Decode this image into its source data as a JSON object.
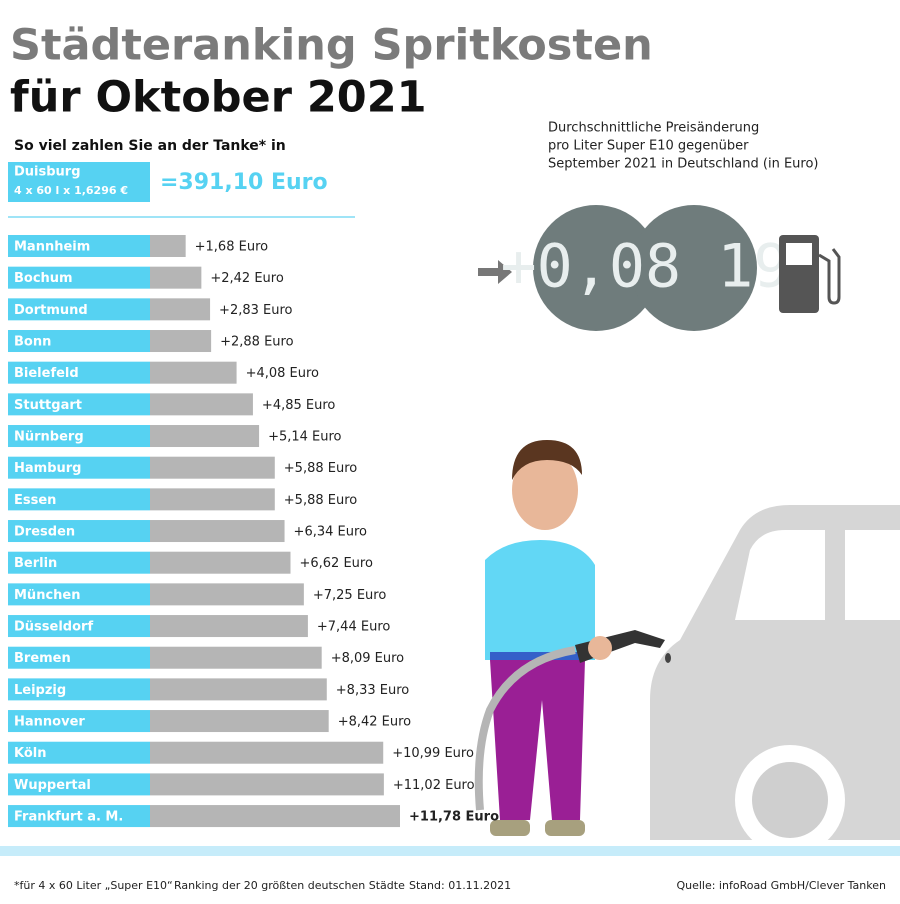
{
  "header": {
    "title_line1": "Städteranking Spritkosten",
    "title_line2": "für Oktober 2021",
    "subtitle": "So viel zahlen Sie an der Tanke* in",
    "reference_city": "Duisburg",
    "reference_formula": "4 x 60 l x 1,6296 €",
    "reference_total": "=391,10 Euro"
  },
  "price_change": {
    "description_lines": [
      "Durchschnittliche Preisänderung",
      "pro Liter Super E10 gegenüber",
      "September 2021 in Deutschland (in Euro)"
    ],
    "display": "+0,08 19"
  },
  "chart_data": {
    "type": "bar",
    "categories": [
      "Mannheim",
      "Bochum",
      "Dortmund",
      "Bonn",
      "Bielefeld",
      "Stuttgart",
      "Nürnberg",
      "Hamburg",
      "Essen",
      "Dresden",
      "Berlin",
      "München",
      "Düsseldorf",
      "Bremen",
      "Leipzig",
      "Hannover",
      "Köln",
      "Wuppertal",
      "Frankfurt a. M."
    ],
    "values": [
      1.68,
      2.42,
      2.83,
      2.88,
      4.08,
      4.85,
      5.14,
      5.88,
      5.88,
      6.34,
      6.62,
      7.25,
      7.44,
      8.09,
      8.33,
      8.42,
      10.99,
      11.02,
      11.78
    ],
    "value_labels": [
      "+1,68 Euro",
      "+2,42 Euro",
      "+2,83 Euro",
      "+2,88 Euro",
      "+4,08 Euro",
      "+4,85 Euro",
      "+5,14 Euro",
      "+5,88 Euro",
      "+5,88 Euro",
      "+6,34 Euro",
      "+6,62 Euro",
      "+7,25 Euro",
      "+7,44 Euro",
      "+8,09 Euro",
      "+8,33 Euro",
      "+8,42 Euro",
      "+10,99 Euro",
      "+11,02 Euro",
      "+11,78 Euro"
    ],
    "color": "#b5b5b5",
    "label_color": "#56d2f2"
  },
  "footer": {
    "note": "*für 4 x 60 Liter „Super E10“",
    "ranking": "Ranking der 20 größten deutschen Städte",
    "date": "Stand: 01.11.2021",
    "source": "Quelle: infoRoad GmbH/Clever Tanken"
  }
}
